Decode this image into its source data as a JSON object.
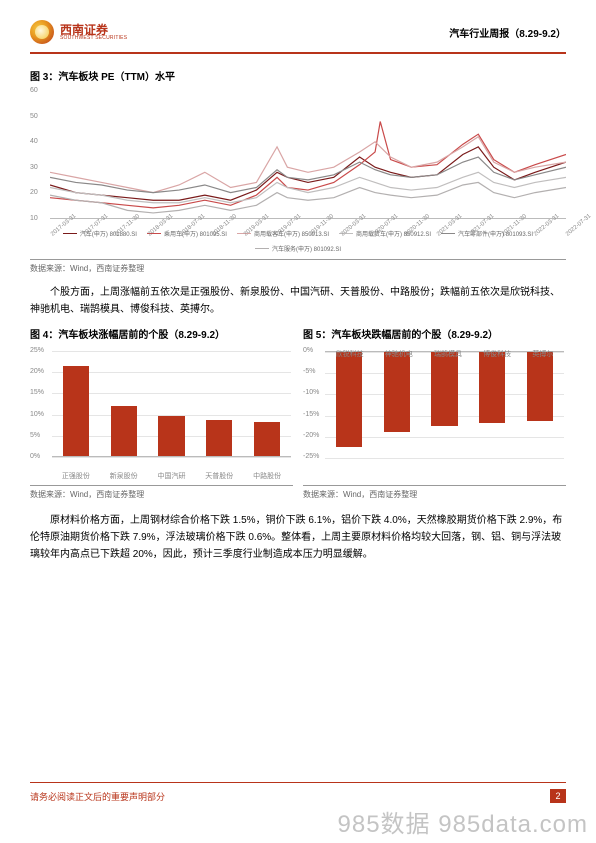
{
  "header": {
    "logo_cn": "西南证券",
    "logo_en": "SOUTHWEST SECURITIES",
    "title": "汽车行业周报（8.29-9.2）"
  },
  "fig3": {
    "title": "图 3：汽车板块 PE（TTM）水平",
    "ylim": [
      10,
      60
    ],
    "ytick_step": 10,
    "ylabels": [
      "60",
      "50",
      "40",
      "30",
      "20",
      "10"
    ],
    "xlabels": [
      "2017-03-31",
      "2017-07-31",
      "2017-11-30",
      "2018-03-31",
      "2018-07-31",
      "2018-11-30",
      "2019-03-31",
      "2019-07-31",
      "2019-11-30",
      "2020-03-31",
      "2020-07-31",
      "2020-11-30",
      "2021-03-31",
      "2021-07-31",
      "2021-11-30",
      "2022-03-31",
      "2022-07-31"
    ],
    "legend": [
      {
        "label": "汽车(申万) 801880.SI",
        "color": "#7a1a1a"
      },
      {
        "label": "乘用车(申万) 801095.SI",
        "color": "#c94a4a"
      },
      {
        "label": "商用载客车(申万) 850913.SI",
        "color": "#d9a5a5"
      },
      {
        "label": "商用载货车(申万) 850912.SI",
        "color": "#c0bebe"
      },
      {
        "label": "汽车零部件(申万) 801093.SI",
        "color": "#8a8888"
      },
      {
        "label": "汽车服务(申万) 801092.SI",
        "color": "#b3b0b0"
      }
    ],
    "series": [
      {
        "color": "#7a1a1a",
        "width": 1.2,
        "points": [
          [
            0,
            23
          ],
          [
            5,
            20
          ],
          [
            10,
            19
          ],
          [
            15,
            18
          ],
          [
            20,
            17
          ],
          [
            25,
            17
          ],
          [
            30,
            19
          ],
          [
            35,
            17
          ],
          [
            40,
            21
          ],
          [
            44,
            28
          ],
          [
            46,
            26
          ],
          [
            50,
            24
          ],
          [
            55,
            26
          ],
          [
            60,
            34
          ],
          [
            63,
            30
          ],
          [
            66,
            28
          ],
          [
            70,
            26
          ],
          [
            75,
            27
          ],
          [
            80,
            35
          ],
          [
            83,
            38
          ],
          [
            86,
            30
          ],
          [
            90,
            25
          ],
          [
            94,
            28
          ],
          [
            100,
            32
          ]
        ]
      },
      {
        "color": "#c94a4a",
        "width": 1.2,
        "points": [
          [
            0,
            18
          ],
          [
            5,
            17
          ],
          [
            10,
            16
          ],
          [
            15,
            15
          ],
          [
            20,
            14
          ],
          [
            25,
            15
          ],
          [
            30,
            17
          ],
          [
            35,
            15
          ],
          [
            40,
            19
          ],
          [
            44,
            26
          ],
          [
            46,
            22
          ],
          [
            50,
            21
          ],
          [
            55,
            24
          ],
          [
            60,
            31
          ],
          [
            63,
            36
          ],
          [
            64,
            48
          ],
          [
            66,
            33
          ],
          [
            70,
            30
          ],
          [
            75,
            31
          ],
          [
            80,
            39
          ],
          [
            83,
            43
          ],
          [
            86,
            33
          ],
          [
            90,
            28
          ],
          [
            94,
            31
          ],
          [
            100,
            35
          ]
        ]
      },
      {
        "color": "#d9a5a5",
        "width": 1.2,
        "points": [
          [
            0,
            28
          ],
          [
            5,
            26
          ],
          [
            10,
            24
          ],
          [
            15,
            22
          ],
          [
            20,
            20
          ],
          [
            25,
            23
          ],
          [
            30,
            28
          ],
          [
            35,
            22
          ],
          [
            40,
            24
          ],
          [
            44,
            38
          ],
          [
            46,
            30
          ],
          [
            50,
            28
          ],
          [
            55,
            30
          ],
          [
            60,
            36
          ],
          [
            63,
            40
          ],
          [
            66,
            34
          ],
          [
            70,
            30
          ],
          [
            75,
            32
          ],
          [
            80,
            38
          ],
          [
            83,
            42
          ],
          [
            86,
            32
          ],
          [
            90,
            28
          ],
          [
            94,
            30
          ],
          [
            100,
            32
          ]
        ]
      },
      {
        "color": "#c0bebe",
        "width": 1.2,
        "points": [
          [
            0,
            22
          ],
          [
            5,
            20
          ],
          [
            10,
            19
          ],
          [
            15,
            17
          ],
          [
            20,
            16
          ],
          [
            25,
            16
          ],
          [
            30,
            18
          ],
          [
            35,
            16
          ],
          [
            40,
            18
          ],
          [
            44,
            24
          ],
          [
            46,
            22
          ],
          [
            50,
            20
          ],
          [
            55,
            22
          ],
          [
            60,
            26
          ],
          [
            63,
            24
          ],
          [
            66,
            22
          ],
          [
            70,
            21
          ],
          [
            75,
            22
          ],
          [
            80,
            26
          ],
          [
            83,
            28
          ],
          [
            86,
            24
          ],
          [
            90,
            22
          ],
          [
            94,
            24
          ],
          [
            100,
            26
          ]
        ]
      },
      {
        "color": "#8a8888",
        "width": 1.2,
        "points": [
          [
            0,
            26
          ],
          [
            5,
            24
          ],
          [
            10,
            23
          ],
          [
            15,
            21
          ],
          [
            20,
            20
          ],
          [
            25,
            21
          ],
          [
            30,
            23
          ],
          [
            35,
            20
          ],
          [
            40,
            22
          ],
          [
            44,
            29
          ],
          [
            46,
            26
          ],
          [
            50,
            25
          ],
          [
            55,
            27
          ],
          [
            60,
            32
          ],
          [
            63,
            29
          ],
          [
            66,
            27
          ],
          [
            70,
            26
          ],
          [
            75,
            27
          ],
          [
            80,
            32
          ],
          [
            83,
            34
          ],
          [
            86,
            28
          ],
          [
            90,
            25
          ],
          [
            94,
            27
          ],
          [
            100,
            30
          ]
        ]
      },
      {
        "color": "#b3b0b0",
        "width": 1.2,
        "points": [
          [
            0,
            19
          ],
          [
            5,
            17
          ],
          [
            10,
            16
          ],
          [
            15,
            13
          ],
          [
            20,
            12
          ],
          [
            25,
            13
          ],
          [
            30,
            15
          ],
          [
            35,
            13
          ],
          [
            40,
            15
          ],
          [
            44,
            20
          ],
          [
            46,
            18
          ],
          [
            50,
            17
          ],
          [
            55,
            18
          ],
          [
            60,
            22
          ],
          [
            63,
            20
          ],
          [
            66,
            19
          ],
          [
            70,
            18
          ],
          [
            75,
            19
          ],
          [
            80,
            23
          ],
          [
            83,
            24
          ],
          [
            86,
            20
          ],
          [
            90,
            18
          ],
          [
            94,
            20
          ],
          [
            100,
            22
          ]
        ]
      }
    ],
    "source": "数据来源：Wind，西南证券整理"
  },
  "para1": "个股方面，上周涨幅前五依次是正强股份、新泉股份、中国汽研、天普股份、中路股份；跌幅前五依次是欣锐科技、神驰机电、瑞鹄模具、博俊科技、英搏尔。",
  "fig4": {
    "title": "图 4：汽车板块涨幅居前的个股（8.29-9.2）",
    "ylim": [
      0,
      25
    ],
    "ytick_step": 5,
    "ylabels": [
      "25%",
      "20%",
      "15%",
      "10%",
      "5%",
      "0%"
    ],
    "categories": [
      "正强股份",
      "新泉股份",
      "中国汽研",
      "天普股份",
      "中路股份"
    ],
    "values": [
      21.5,
      12.0,
      9.5,
      8.5,
      8.0
    ],
    "bar_color": "#b8341a",
    "bar_width": 0.55,
    "source": "数据来源：Wind，西南证券整理"
  },
  "fig5": {
    "title": "图 5：汽车板块跌幅居前的个股（8.29-9.2）",
    "ylim": [
      -25,
      0
    ],
    "ytick_step": 5,
    "ylabels": [
      "0%",
      "-5%",
      "-10%",
      "-15%",
      "-20%",
      "-25%"
    ],
    "categories": [
      "欣锐科技",
      "神驰机电",
      "瑞鹄模具",
      "博俊科技",
      "英搏尔"
    ],
    "values": [
      -22.5,
      -19.0,
      -17.5,
      -17.0,
      -16.5
    ],
    "bar_color": "#b8341a",
    "bar_width": 0.55,
    "source": "数据来源：Wind，西南证券整理"
  },
  "para2": "原材料价格方面，上周钢材综合价格下跌 1.5%，铜价下跌 6.1%，铝价下跌 4.0%，天然橡胶期货价格下跌 2.9%，布伦特原油期货价格下跌 7.9%，浮法玻璃价格下跌 0.6%。整体看，上周主要原材料价格均较大回落，钢、铝、铜与浮法玻璃较年内高点已下跌超 20%，因此，预计三季度行业制造成本压力明显缓解。",
  "footer": {
    "disclaimer": "请务必阅读正文后的重要声明部分",
    "page": "2"
  },
  "watermark": "985数据 985data.com"
}
